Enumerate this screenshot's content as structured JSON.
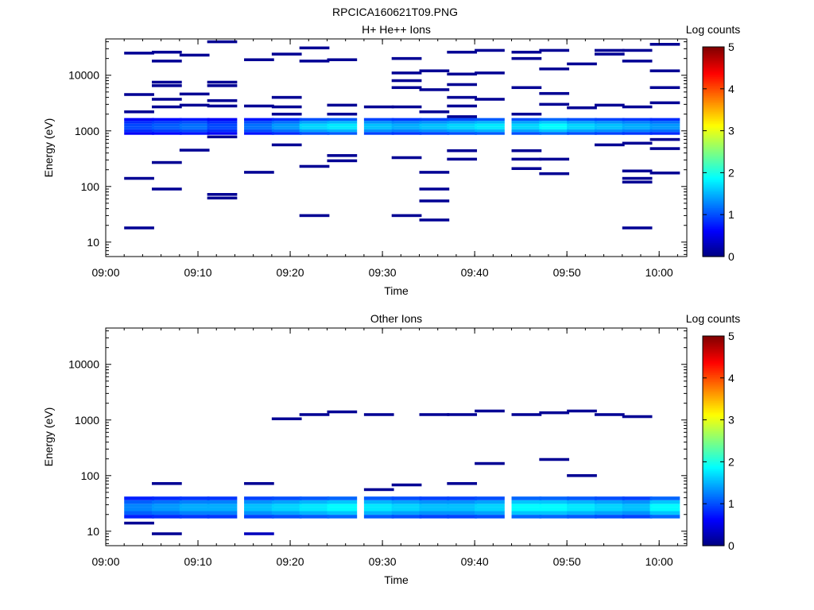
{
  "figure_title": "RPCICA160621T09.PNG",
  "chart_data": [
    {
      "type": "heatmap",
      "title": "H+ He++ Ions",
      "xlabel": "Time",
      "ylabel": "Energy (eV)",
      "x_ticks": [
        "09:00",
        "09:10",
        "09:20",
        "09:30",
        "09:40",
        "09:50",
        "10:00"
      ],
      "y_ticks": [
        "10",
        "100",
        "1000",
        "10000"
      ],
      "y_scale": "log",
      "ylim": [
        5.5,
        45000
      ],
      "colorbar": {
        "label": "Log counts",
        "ticks": [
          "0",
          "1",
          "2",
          "3",
          "4",
          "5"
        ],
        "range": [
          0,
          5
        ]
      },
      "time_bins": [
        "09:02",
        "09:05",
        "09:08",
        "09:11",
        "09:15",
        "09:18",
        "09:21",
        "09:24",
        "09:28",
        "09:31",
        "09:34",
        "09:37",
        "09:40",
        "09:44",
        "09:47",
        "09:50",
        "09:53",
        "09:56",
        "09:59"
      ],
      "base_band": {
        "energy_range": [
          850,
          1700
        ],
        "values": [
          1.0,
          1.1,
          1.2,
          1.0,
          1.2,
          1.4,
          1.7,
          1.8,
          1.6,
          1.5,
          1.6,
          1.7,
          1.8,
          1.7,
          1.9,
          1.7,
          1.6,
          1.5,
          1.4
        ]
      },
      "cells": [
        {
          "t": 0,
          "e": 25000,
          "v": 0.1
        },
        {
          "t": 0,
          "e": 4500,
          "v": 0.1
        },
        {
          "t": 0,
          "e": 2200,
          "v": 0.1
        },
        {
          "t": 0,
          "e": 140,
          "v": 0.1
        },
        {
          "t": 0,
          "e": 18,
          "v": 0.1
        },
        {
          "t": 1,
          "e": 26000,
          "v": 0.1
        },
        {
          "t": 1,
          "e": 18000,
          "v": 0.1
        },
        {
          "t": 1,
          "e": 7500,
          "v": 0.1
        },
        {
          "t": 1,
          "e": 6500,
          "v": 0.1
        },
        {
          "t": 1,
          "e": 3700,
          "v": 0.1
        },
        {
          "t": 1,
          "e": 2700,
          "v": 0.1
        },
        {
          "t": 1,
          "e": 270,
          "v": 0.1
        },
        {
          "t": 1,
          "e": 90,
          "v": 0.1
        },
        {
          "t": 2,
          "e": 23000,
          "v": 0.1
        },
        {
          "t": 2,
          "e": 4600,
          "v": 0.1
        },
        {
          "t": 2,
          "e": 2900,
          "v": 0.1
        },
        {
          "t": 2,
          "e": 450,
          "v": 0.1
        },
        {
          "t": 3,
          "e": 40000,
          "v": 0.1
        },
        {
          "t": 3,
          "e": 7500,
          "v": 0.1
        },
        {
          "t": 3,
          "e": 6500,
          "v": 0.1
        },
        {
          "t": 3,
          "e": 3500,
          "v": 0.1
        },
        {
          "t": 3,
          "e": 2800,
          "v": 0.1
        },
        {
          "t": 3,
          "e": 780,
          "v": 0.1
        },
        {
          "t": 3,
          "e": 72,
          "v": 0.1
        },
        {
          "t": 3,
          "e": 62,
          "v": 0.1
        },
        {
          "t": 4,
          "e": 19000,
          "v": 0.1
        },
        {
          "t": 4,
          "e": 2800,
          "v": 0.1
        },
        {
          "t": 4,
          "e": 180,
          "v": 0.1
        },
        {
          "t": 5,
          "e": 24000,
          "v": 0.1
        },
        {
          "t": 5,
          "e": 4000,
          "v": 0.1
        },
        {
          "t": 5,
          "e": 2700,
          "v": 0.1
        },
        {
          "t": 5,
          "e": 2000,
          "v": 0.1
        },
        {
          "t": 5,
          "e": 560,
          "v": 0.1
        },
        {
          "t": 6,
          "e": 31000,
          "v": 0.1
        },
        {
          "t": 6,
          "e": 18000,
          "v": 0.1
        },
        {
          "t": 6,
          "e": 230,
          "v": 0.1
        },
        {
          "t": 6,
          "e": 30,
          "v": 0.1
        },
        {
          "t": 7,
          "e": 19000,
          "v": 0.1
        },
        {
          "t": 7,
          "e": 2900,
          "v": 0.1
        },
        {
          "t": 7,
          "e": 2000,
          "v": 0.1
        },
        {
          "t": 7,
          "e": 360,
          "v": 0.1
        },
        {
          "t": 7,
          "e": 290,
          "v": 0.1
        },
        {
          "t": 8,
          "e": 2700,
          "v": 0.1
        },
        {
          "t": 9,
          "e": 20000,
          "v": 0.1
        },
        {
          "t": 9,
          "e": 11000,
          "v": 0.1
        },
        {
          "t": 9,
          "e": 8000,
          "v": 0.1
        },
        {
          "t": 9,
          "e": 6000,
          "v": 0.1
        },
        {
          "t": 9,
          "e": 2700,
          "v": 0.1
        },
        {
          "t": 9,
          "e": 330,
          "v": 0.1
        },
        {
          "t": 9,
          "e": 30,
          "v": 0.1
        },
        {
          "t": 10,
          "e": 12000,
          "v": 0.1
        },
        {
          "t": 10,
          "e": 5500,
          "v": 0.1
        },
        {
          "t": 10,
          "e": 2200,
          "v": 0.1
        },
        {
          "t": 10,
          "e": 180,
          "v": 0.1
        },
        {
          "t": 10,
          "e": 90,
          "v": 0.1
        },
        {
          "t": 10,
          "e": 55,
          "v": 0.1
        },
        {
          "t": 10,
          "e": 25,
          "v": 0.1
        },
        {
          "t": 11,
          "e": 26000,
          "v": 0.1
        },
        {
          "t": 11,
          "e": 10500,
          "v": 0.1
        },
        {
          "t": 11,
          "e": 6800,
          "v": 0.1
        },
        {
          "t": 11,
          "e": 4000,
          "v": 0.1
        },
        {
          "t": 11,
          "e": 2800,
          "v": 0.1
        },
        {
          "t": 11,
          "e": 1800,
          "v": 0.1
        },
        {
          "t": 11,
          "e": 440,
          "v": 0.1
        },
        {
          "t": 11,
          "e": 310,
          "v": 0.1
        },
        {
          "t": 12,
          "e": 28000,
          "v": 0.1
        },
        {
          "t": 12,
          "e": 11000,
          "v": 0.1
        },
        {
          "t": 12,
          "e": 3700,
          "v": 0.1
        },
        {
          "t": 13,
          "e": 26000,
          "v": 0.1
        },
        {
          "t": 13,
          "e": 20000,
          "v": 0.1
        },
        {
          "t": 13,
          "e": 6000,
          "v": 0.1
        },
        {
          "t": 13,
          "e": 2000,
          "v": 0.1
        },
        {
          "t": 13,
          "e": 440,
          "v": 0.1
        },
        {
          "t": 13,
          "e": 310,
          "v": 0.1
        },
        {
          "t": 13,
          "e": 210,
          "v": 0.1
        },
        {
          "t": 14,
          "e": 28000,
          "v": 0.1
        },
        {
          "t": 14,
          "e": 13000,
          "v": 0.1
        },
        {
          "t": 14,
          "e": 4700,
          "v": 0.1
        },
        {
          "t": 14,
          "e": 3000,
          "v": 0.1
        },
        {
          "t": 14,
          "e": 310,
          "v": 0.1
        },
        {
          "t": 14,
          "e": 170,
          "v": 0.1
        },
        {
          "t": 15,
          "e": 16000,
          "v": 0.1
        },
        {
          "t": 15,
          "e": 2600,
          "v": 0.1
        },
        {
          "t": 16,
          "e": 28000,
          "v": 0.1
        },
        {
          "t": 16,
          "e": 24000,
          "v": 0.1
        },
        {
          "t": 16,
          "e": 2900,
          "v": 0.1
        },
        {
          "t": 16,
          "e": 560,
          "v": 0.1
        },
        {
          "t": 17,
          "e": 28000,
          "v": 0.1
        },
        {
          "t": 17,
          "e": 18000,
          "v": 0.1
        },
        {
          "t": 17,
          "e": 2700,
          "v": 0.1
        },
        {
          "t": 17,
          "e": 600,
          "v": 0.1
        },
        {
          "t": 17,
          "e": 190,
          "v": 0.1
        },
        {
          "t": 17,
          "e": 140,
          "v": 0.1
        },
        {
          "t": 17,
          "e": 120,
          "v": 0.1
        },
        {
          "t": 17,
          "e": 18,
          "v": 0.1
        },
        {
          "t": 18,
          "e": 36000,
          "v": 0.1
        },
        {
          "t": 18,
          "e": 12000,
          "v": 0.1
        },
        {
          "t": 18,
          "e": 6000,
          "v": 0.1
        },
        {
          "t": 18,
          "e": 3200,
          "v": 0.1
        },
        {
          "t": 18,
          "e": 700,
          "v": 0.1
        },
        {
          "t": 18,
          "e": 480,
          "v": 0.1
        },
        {
          "t": 18,
          "e": 175,
          "v": 0.1
        }
      ]
    },
    {
      "type": "heatmap",
      "title": "Other Ions",
      "xlabel": "Time",
      "ylabel": "Energy (eV)",
      "x_ticks": [
        "09:00",
        "09:10",
        "09:20",
        "09:30",
        "09:40",
        "09:50",
        "10:00"
      ],
      "y_ticks": [
        "10",
        "100",
        "1000",
        "10000"
      ],
      "y_scale": "log",
      "ylim": [
        5.5,
        45000
      ],
      "colorbar": {
        "label": "Log counts",
        "ticks": [
          "0",
          "1",
          "2",
          "3",
          "4",
          "5"
        ],
        "range": [
          0,
          5
        ]
      },
      "time_bins": [
        "09:02",
        "09:05",
        "09:08",
        "09:11",
        "09:15",
        "09:18",
        "09:21",
        "09:24",
        "09:28",
        "09:31",
        "09:34",
        "09:37",
        "09:40",
        "09:44",
        "09:47",
        "09:50",
        "09:53",
        "09:56",
        "09:59"
      ],
      "base_band": {
        "energy_range": [
          17,
          42
        ],
        "values": [
          1.3,
          1.4,
          1.5,
          1.5,
          1.6,
          1.7,
          1.8,
          1.9,
          1.8,
          1.7,
          1.6,
          1.6,
          1.7,
          1.9,
          1.9,
          1.8,
          1.7,
          1.6,
          1.9
        ]
      },
      "cells": [
        {
          "t": 0,
          "e": 14,
          "v": 0.1
        },
        {
          "t": 1,
          "e": 72,
          "v": 0.1
        },
        {
          "t": 1,
          "e": 9,
          "v": 0.1
        },
        {
          "t": 4,
          "e": 72,
          "v": 0.1
        },
        {
          "t": 4,
          "e": 9,
          "v": 0.3
        },
        {
          "t": 5,
          "e": 1050,
          "v": 0.1
        },
        {
          "t": 6,
          "e": 1250,
          "v": 0.1
        },
        {
          "t": 7,
          "e": 1400,
          "v": 0.1
        },
        {
          "t": 8,
          "e": 1250,
          "v": 0.1
        },
        {
          "t": 8,
          "e": 56,
          "v": 0.1
        },
        {
          "t": 9,
          "e": 68,
          "v": 0.1
        },
        {
          "t": 10,
          "e": 1250,
          "v": 0.1
        },
        {
          "t": 11,
          "e": 1250,
          "v": 0.1
        },
        {
          "t": 11,
          "e": 72,
          "v": 0.1
        },
        {
          "t": 12,
          "e": 1450,
          "v": 0.1
        },
        {
          "t": 12,
          "e": 165,
          "v": 0.1
        },
        {
          "t": 13,
          "e": 1250,
          "v": 0.1
        },
        {
          "t": 14,
          "e": 1350,
          "v": 0.1
        },
        {
          "t": 14,
          "e": 195,
          "v": 0.1
        },
        {
          "t": 15,
          "e": 1450,
          "v": 0.1
        },
        {
          "t": 15,
          "e": 100,
          "v": 0.1
        },
        {
          "t": 16,
          "e": 1250,
          "v": 0.1
        },
        {
          "t": 17,
          "e": 1150,
          "v": 0.1
        }
      ]
    }
  ]
}
